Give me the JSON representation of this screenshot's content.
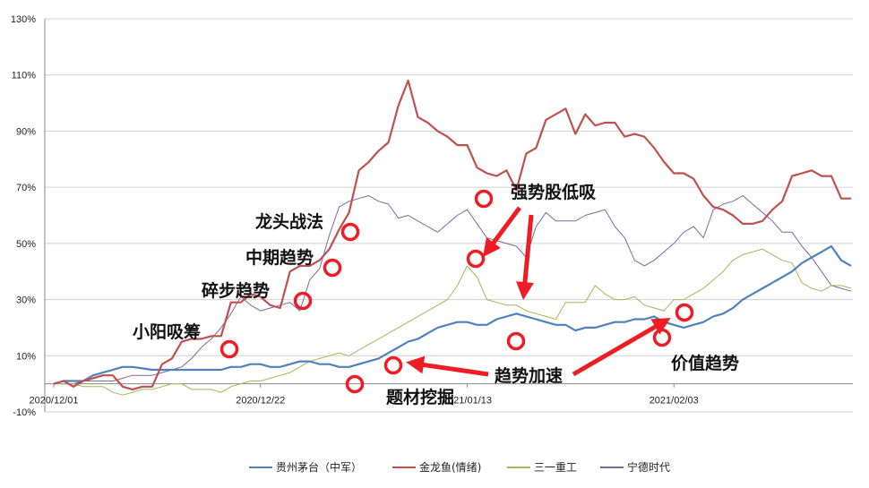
{
  "chart_data": {
    "type": "line",
    "ylim": [
      -10,
      130
    ],
    "yticks": [
      "-10%",
      "10%",
      "30%",
      "50%",
      "70%",
      "90%",
      "110%",
      "130%"
    ],
    "ytick_values": [
      -10,
      10,
      30,
      50,
      70,
      90,
      110,
      130
    ],
    "xticks": [
      "2020/12/01",
      "2020/12/22",
      "2021/01/13",
      "2021/02/03"
    ],
    "xtick_index": [
      0,
      21,
      42,
      63
    ],
    "n_points": 82,
    "grid": true,
    "legend_position": "bottom",
    "colors": {
      "maotai": "#4f81bd",
      "jinlongyu": "#c0504d",
      "sany": "#9bbb59",
      "ningde": "#8064a2",
      "annotation": "#ee1c24",
      "grid": "#d0d0d0",
      "axis": "#888888"
    },
    "series": [
      {
        "id": "maotai",
        "name": "贵州茅台（中军）",
        "values": [
          0,
          1,
          1,
          1,
          3,
          4,
          5,
          6,
          6,
          5.5,
          5,
          5,
          5,
          5,
          5,
          5,
          5,
          5,
          6,
          6,
          7,
          7,
          6,
          6,
          7,
          8,
          8,
          7,
          7,
          6,
          6,
          7,
          8,
          9,
          11,
          13,
          15,
          16,
          18,
          20,
          21,
          22,
          22,
          21,
          21,
          23,
          24,
          25,
          24,
          23,
          22,
          21,
          21,
          19,
          20,
          20,
          21,
          22,
          22,
          23,
          23,
          24,
          22,
          21,
          20,
          21,
          22,
          24,
          25,
          27,
          30,
          32,
          34,
          36,
          38,
          40,
          43,
          45,
          47,
          49,
          44,
          42
        ]
      },
      {
        "id": "jinlongyu",
        "name": "金龙鱼(情绪)",
        "values": [
          0,
          1,
          -1,
          1,
          2,
          3,
          3,
          -1,
          -2,
          -1,
          -1,
          7,
          9,
          15,
          16,
          16,
          17,
          17,
          29,
          29,
          32,
          31,
          28,
          27,
          40,
          42,
          42,
          44,
          48,
          55,
          61,
          76,
          79,
          83,
          86,
          99,
          108,
          95,
          93,
          90,
          88,
          85,
          85,
          77,
          75,
          74,
          76,
          69,
          82,
          84,
          94,
          96,
          98,
          89,
          96,
          92,
          93,
          93,
          88,
          89,
          88,
          84,
          79,
          75,
          75,
          73,
          67,
          63,
          62,
          60,
          57,
          57,
          58,
          62,
          65,
          74,
          75,
          76,
          74,
          74,
          66,
          66
        ]
      },
      {
        "id": "sany",
        "name": "三一重工",
        "values": [
          0,
          0,
          0,
          -1,
          -1,
          -1,
          -3,
          -4,
          -3,
          -2,
          -2,
          -1,
          0,
          0,
          -2,
          -2,
          -2,
          -3,
          -1,
          0,
          1,
          1,
          2,
          3,
          4,
          6,
          8,
          9,
          10,
          11,
          10,
          12,
          14,
          16,
          18,
          20,
          22,
          24,
          26,
          28,
          30,
          35,
          42,
          38,
          30,
          29,
          28,
          28,
          26,
          25,
          24,
          23,
          29,
          29,
          29,
          35,
          32,
          30,
          30,
          31,
          28,
          27,
          26,
          30,
          30,
          32,
          34,
          37,
          40,
          44,
          46,
          47,
          48,
          46,
          44,
          43,
          36,
          34,
          33,
          35,
          35,
          34
        ]
      },
      {
        "id": "ningde",
        "name": "宁德时代",
        "values": [
          0,
          0,
          0,
          1,
          1,
          1,
          1,
          2,
          3,
          3,
          3,
          4,
          5,
          6,
          9,
          13,
          16,
          20,
          25,
          31,
          28,
          26,
          27,
          28,
          29,
          26,
          37,
          41,
          53,
          63,
          65,
          66,
          67,
          65,
          64,
          59,
          60,
          58,
          56,
          54,
          57,
          60,
          62,
          57,
          52,
          51,
          50,
          49,
          45,
          56,
          61,
          58,
          58,
          58,
          60,
          61,
          62,
          56,
          52,
          44,
          42,
          44,
          47,
          50,
          54,
          56,
          52,
          62,
          64,
          65,
          67,
          64,
          61,
          58,
          54,
          54,
          49,
          45,
          40,
          35,
          34,
          33
        ]
      }
    ],
    "annotations": [
      {
        "text": "小阳吸筹"
      },
      {
        "text": "碎步趋势"
      },
      {
        "text": "中期趋势"
      },
      {
        "text": "龙头战法"
      },
      {
        "text": "强势股低吸"
      },
      {
        "text": "趋势加速"
      },
      {
        "text": "题材挖掘"
      },
      {
        "text": "价值趋势"
      }
    ]
  }
}
